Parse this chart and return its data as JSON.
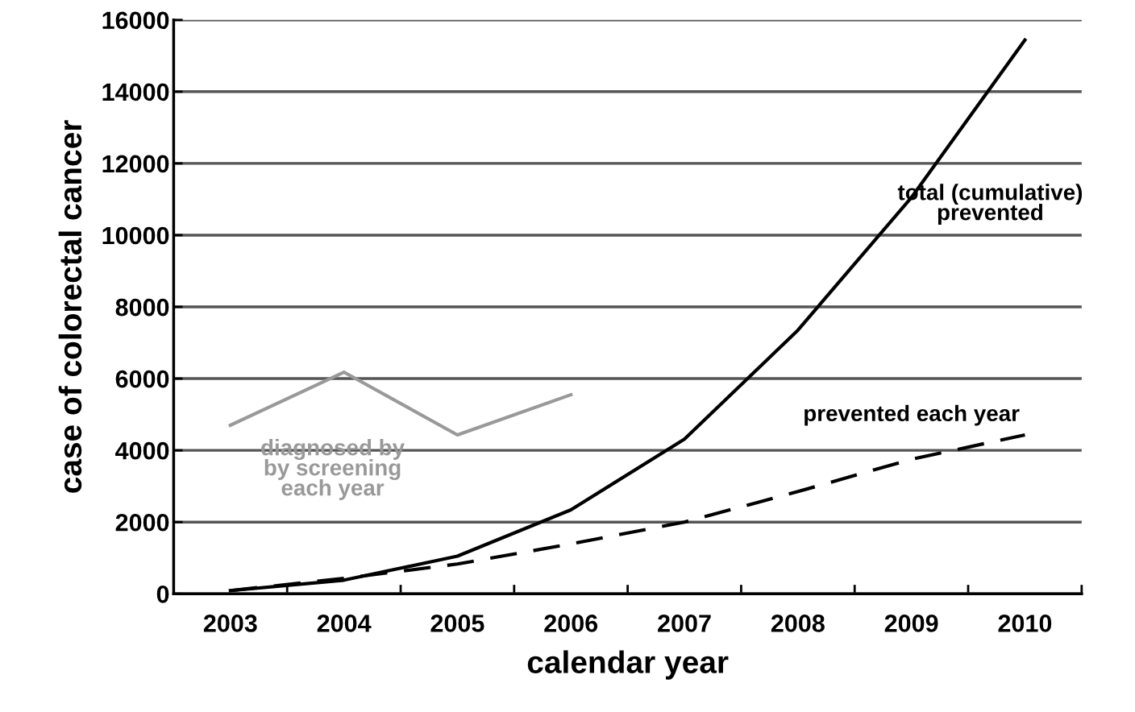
{
  "chart_data": {
    "type": "line",
    "xlabel": "calendar year",
    "ylabel": "case of colorectal cancer",
    "categories": [
      "2003",
      "2004",
      "2005",
      "2006",
      "2007",
      "2008",
      "2009",
      "2010"
    ],
    "series": [
      {
        "name": "total (cumulative)\nprevented",
        "color": "#000000",
        "line_style": "solid",
        "values": [
          90,
          380,
          1050,
          2340,
          4310,
          7350,
          11050,
          15440
        ]
      },
      {
        "name": "prevented each year",
        "color": "#000000",
        "line_style": "dashed",
        "values": [
          90,
          430,
          830,
          1390,
          2000,
          2850,
          3750,
          4430
        ]
      },
      {
        "name": "diagnosed by\nby screening\neach year",
        "color": "#999999",
        "line_style": "solid",
        "values": [
          4700,
          6180,
          4430,
          5550,
          null,
          null,
          null,
          null
        ]
      }
    ],
    "ylim": [
      0,
      16000
    ],
    "yticks": [
      0,
      2000,
      4000,
      6000,
      8000,
      10000,
      12000,
      14000,
      16000
    ],
    "grid": "y",
    "legend": false,
    "marker": "none"
  }
}
